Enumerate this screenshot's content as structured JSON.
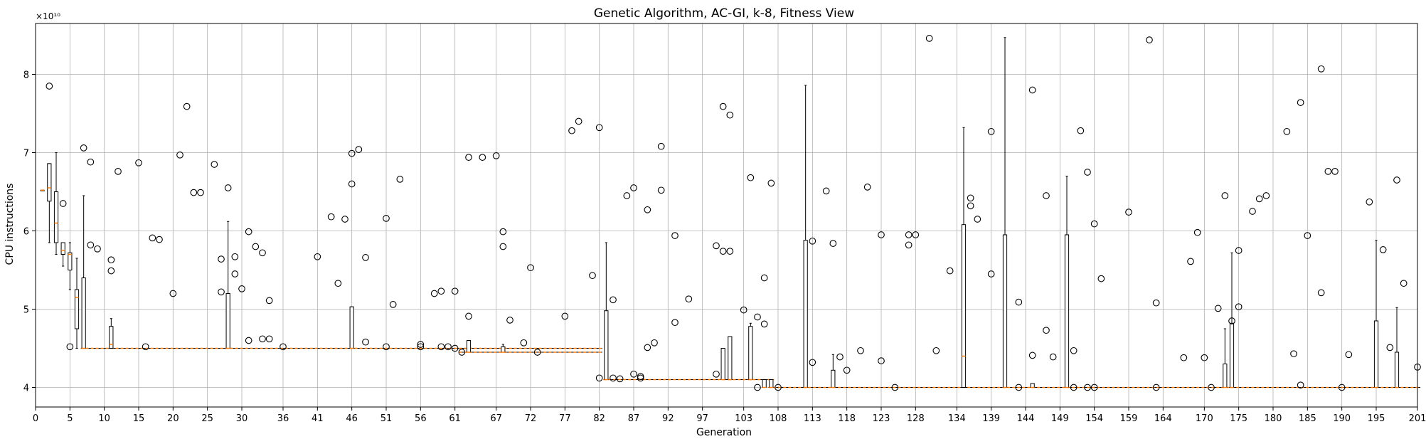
{
  "chart_data": {
    "type": "box",
    "title": "Genetic Algorithm, AC-GI, k-8, Fitness View",
    "xlabel": "Generation",
    "ylabel": "CPU instructions",
    "y_offset_label": "×10¹⁰",
    "y_scale_factor": 10000000000,
    "xlim": [
      0,
      201
    ],
    "ylim": [
      3.75,
      8.65
    ],
    "x_ticks": [
      0,
      5,
      10,
      15,
      20,
      25,
      30,
      36,
      41,
      46,
      51,
      56,
      61,
      67,
      72,
      77,
      82,
      87,
      92,
      97,
      103,
      108,
      113,
      118,
      123,
      128,
      134,
      139,
      144,
      149,
      154,
      159,
      164,
      170,
      175,
      180,
      185,
      190,
      195,
      201
    ],
    "y_ticks": [
      4,
      5,
      6,
      7,
      8
    ],
    "grid": true,
    "box_color": "#000000",
    "median_color": "#ff7f0e",
    "boxes": [
      {
        "x": 1,
        "q1": 6.52,
        "med": 6.52,
        "q3": 6.52,
        "lo": 6.52,
        "hi": 6.52
      },
      {
        "x": 2,
        "q1": 6.38,
        "med": 6.55,
        "q3": 6.86,
        "lo": 5.85,
        "hi": 6.86
      },
      {
        "x": 3,
        "q1": 5.85,
        "med": 6.1,
        "q3": 6.5,
        "lo": 5.7,
        "hi": 7.0
      },
      {
        "x": 4,
        "q1": 5.7,
        "med": 5.75,
        "q3": 5.85,
        "lo": 5.55,
        "hi": 5.85
      },
      {
        "x": 5,
        "q1": 5.5,
        "med": 5.7,
        "q3": 5.72,
        "lo": 5.25,
        "hi": 5.85
      },
      {
        "x": 6,
        "q1": 4.75,
        "med": 5.15,
        "q3": 5.25,
        "lo": 4.5,
        "hi": 5.65
      },
      {
        "x": 7,
        "q1": 4.5,
        "med": 4.5,
        "q3": 5.4,
        "lo": 4.5,
        "hi": 6.45
      },
      {
        "x": 11,
        "q1": 4.5,
        "med": 4.55,
        "q3": 4.78,
        "lo": 4.5,
        "hi": 4.88
      },
      {
        "x": 28,
        "q1": 4.5,
        "med": 4.5,
        "q3": 5.2,
        "lo": 4.5,
        "hi": 6.12
      },
      {
        "x": 46,
        "q1": 4.5,
        "med": 4.5,
        "q3": 5.03,
        "lo": 4.5,
        "hi": 5.03
      },
      {
        "x": 63,
        "q1": 4.45,
        "med": 4.45,
        "q3": 4.6,
        "lo": 4.45,
        "hi": 4.6
      },
      {
        "x": 68,
        "q1": 4.45,
        "med": 4.45,
        "q3": 4.52,
        "lo": 4.45,
        "hi": 4.55
      },
      {
        "x": 83,
        "q1": 4.1,
        "med": 4.1,
        "q3": 4.98,
        "lo": 4.1,
        "hi": 5.85
      },
      {
        "x": 100,
        "q1": 4.1,
        "med": 4.1,
        "q3": 4.5,
        "lo": 4.1,
        "hi": 4.5
      },
      {
        "x": 101,
        "q1": 4.1,
        "med": 4.1,
        "q3": 4.65,
        "lo": 4.1,
        "hi": 4.65
      },
      {
        "x": 104,
        "q1": 4.1,
        "med": 4.1,
        "q3": 4.78,
        "lo": 4.1,
        "hi": 4.82
      },
      {
        "x": 106,
        "q1": 4.0,
        "med": 4.0,
        "q3": 4.1,
        "lo": 4.0,
        "hi": 4.1
      },
      {
        "x": 107,
        "q1": 4.0,
        "med": 4.0,
        "q3": 4.1,
        "lo": 4.0,
        "hi": 4.1
      },
      {
        "x": 112,
        "q1": 4.0,
        "med": 4.0,
        "q3": 5.88,
        "lo": 4.0,
        "hi": 7.86
      },
      {
        "x": 116,
        "q1": 4.0,
        "med": 4.0,
        "q3": 4.22,
        "lo": 4.0,
        "hi": 4.42
      },
      {
        "x": 135,
        "q1": 4.0,
        "med": 4.4,
        "q3": 6.08,
        "lo": 4.0,
        "hi": 7.32
      },
      {
        "x": 141,
        "q1": 4.0,
        "med": 4.0,
        "q3": 5.95,
        "lo": 4.0,
        "hi": 8.47
      },
      {
        "x": 145,
        "q1": 4.0,
        "med": 4.0,
        "q3": 4.05,
        "lo": 4.0,
        "hi": 4.05
      },
      {
        "x": 150,
        "q1": 4.0,
        "med": 4.0,
        "q3": 5.95,
        "lo": 4.0,
        "hi": 6.7
      },
      {
        "x": 173,
        "q1": 4.0,
        "med": 4.0,
        "q3": 4.3,
        "lo": 4.0,
        "hi": 4.75
      },
      {
        "x": 174,
        "q1": 4.0,
        "med": 4.0,
        "q3": 4.82,
        "lo": 4.0,
        "hi": 5.72
      },
      {
        "x": 195,
        "q1": 4.0,
        "med": 4.0,
        "q3": 4.85,
        "lo": 4.0,
        "hi": 5.88
      },
      {
        "x": 198,
        "q1": 4.0,
        "med": 4.0,
        "q3": 4.45,
        "lo": 4.0,
        "hi": 5.02
      }
    ],
    "flat_segments": [
      {
        "x0": 7,
        "x1": 82,
        "y": 4.5
      },
      {
        "x0": 62,
        "x1": 82,
        "y": 4.45
      },
      {
        "x0": 83,
        "x1": 107,
        "y": 4.1
      },
      {
        "x0": 107,
        "x1": 201,
        "y": 4.0
      }
    ],
    "outliers": [
      [
        2,
        7.85
      ],
      [
        4,
        6.35
      ],
      [
        5,
        4.52
      ],
      [
        7,
        7.06
      ],
      [
        8,
        6.88
      ],
      [
        8,
        5.82
      ],
      [
        9,
        5.77
      ],
      [
        11,
        5.63
      ],
      [
        11,
        5.49
      ],
      [
        12,
        6.76
      ],
      [
        15,
        6.87
      ],
      [
        16,
        4.52
      ],
      [
        17,
        5.91
      ],
      [
        18,
        5.89
      ],
      [
        20,
        5.2
      ],
      [
        21,
        6.97
      ],
      [
        22,
        7.59
      ],
      [
        23,
        6.49
      ],
      [
        24,
        6.49
      ],
      [
        26,
        6.85
      ],
      [
        27,
        5.64
      ],
      [
        27,
        5.22
      ],
      [
        28,
        6.55
      ],
      [
        29,
        5.67
      ],
      [
        29,
        5.45
      ],
      [
        30,
        5.26
      ],
      [
        31,
        5.99
      ],
      [
        31,
        4.6
      ],
      [
        32,
        5.8
      ],
      [
        33,
        5.72
      ],
      [
        33,
        4.62
      ],
      [
        34,
        4.62
      ],
      [
        34,
        5.11
      ],
      [
        36,
        4.52
      ],
      [
        41,
        5.67
      ],
      [
        43,
        6.18
      ],
      [
        44,
        5.33
      ],
      [
        45,
        6.15
      ],
      [
        46,
        6.99
      ],
      [
        46,
        6.6
      ],
      [
        47,
        7.04
      ],
      [
        48,
        5.66
      ],
      [
        48,
        4.58
      ],
      [
        51,
        6.16
      ],
      [
        51,
        4.52
      ],
      [
        52,
        5.06
      ],
      [
        53,
        6.66
      ],
      [
        56,
        4.55
      ],
      [
        56,
        4.52
      ],
      [
        58,
        5.2
      ],
      [
        59,
        5.23
      ],
      [
        59,
        4.52
      ],
      [
        60,
        4.52
      ],
      [
        61,
        5.23
      ],
      [
        61,
        4.5
      ],
      [
        62,
        4.45
      ],
      [
        63,
        4.91
      ],
      [
        63,
        6.94
      ],
      [
        65,
        6.94
      ],
      [
        67,
        6.96
      ],
      [
        68,
        5.99
      ],
      [
        68,
        5.8
      ],
      [
        69,
        4.86
      ],
      [
        71,
        4.57
      ],
      [
        72,
        5.53
      ],
      [
        73,
        4.45
      ],
      [
        77,
        4.91
      ],
      [
        78,
        7.28
      ],
      [
        79,
        7.4
      ],
      [
        81,
        5.43
      ],
      [
        82,
        7.32
      ],
      [
        82,
        4.12
      ],
      [
        84,
        5.12
      ],
      [
        84,
        4.12
      ],
      [
        85,
        4.11
      ],
      [
        86,
        6.45
      ],
      [
        87,
        6.55
      ],
      [
        87,
        4.17
      ],
      [
        88,
        4.14
      ],
      [
        88,
        4.12
      ],
      [
        89,
        6.27
      ],
      [
        89,
        4.51
      ],
      [
        90,
        4.57
      ],
      [
        91,
        7.08
      ],
      [
        91,
        6.52
      ],
      [
        93,
        5.94
      ],
      [
        93,
        4.83
      ],
      [
        95,
        5.13
      ],
      [
        99,
        5.81
      ],
      [
        99,
        4.17
      ],
      [
        100,
        7.59
      ],
      [
        100,
        5.74
      ],
      [
        101,
        7.48
      ],
      [
        101,
        5.74
      ],
      [
        103,
        4.99
      ],
      [
        104,
        6.68
      ],
      [
        105,
        4.9
      ],
      [
        105,
        4.0
      ],
      [
        106,
        5.4
      ],
      [
        106,
        4.81
      ],
      [
        107,
        6.61
      ],
      [
        108,
        4.0
      ],
      [
        113,
        5.87
      ],
      [
        113,
        4.32
      ],
      [
        115,
        6.51
      ],
      [
        116,
        5.84
      ],
      [
        117,
        4.39
      ],
      [
        118,
        4.22
      ],
      [
        120,
        4.47
      ],
      [
        121,
        6.56
      ],
      [
        123,
        5.95
      ],
      [
        123,
        4.34
      ],
      [
        125,
        4.0
      ],
      [
        127,
        5.95
      ],
      [
        127,
        5.82
      ],
      [
        128,
        5.95
      ],
      [
        130,
        8.46
      ],
      [
        131,
        4.47
      ],
      [
        133,
        5.49
      ],
      [
        136,
        6.42
      ],
      [
        136,
        6.32
      ],
      [
        137,
        6.15
      ],
      [
        139,
        7.27
      ],
      [
        139,
        5.45
      ],
      [
        143,
        5.09
      ],
      [
        143,
        4.0
      ],
      [
        145,
        7.8
      ],
      [
        145,
        4.41
      ],
      [
        147,
        6.45
      ],
      [
        147,
        4.73
      ],
      [
        148,
        4.39
      ],
      [
        151,
        4.47
      ],
      [
        151,
        4.0
      ],
      [
        152,
        7.28
      ],
      [
        153,
        6.75
      ],
      [
        153,
        4.0
      ],
      [
        154,
        6.09
      ],
      [
        154,
        4.0
      ],
      [
        155,
        5.39
      ],
      [
        159,
        6.24
      ],
      [
        162,
        8.44
      ],
      [
        163,
        5.08
      ],
      [
        163,
        4.0
      ],
      [
        167,
        4.38
      ],
      [
        168,
        5.61
      ],
      [
        169,
        5.98
      ],
      [
        170,
        4.38
      ],
      [
        171,
        4.0
      ],
      [
        172,
        5.01
      ],
      [
        173,
        6.45
      ],
      [
        174,
        4.85
      ],
      [
        175,
        5.75
      ],
      [
        175,
        5.03
      ],
      [
        177,
        6.25
      ],
      [
        178,
        6.41
      ],
      [
        179,
        6.45
      ],
      [
        182,
        7.27
      ],
      [
        183,
        4.43
      ],
      [
        184,
        7.64
      ],
      [
        184,
        4.03
      ],
      [
        185,
        5.94
      ],
      [
        187,
        8.07
      ],
      [
        187,
        5.21
      ],
      [
        188,
        6.76
      ],
      [
        189,
        6.76
      ],
      [
        190,
        4.0
      ],
      [
        191,
        4.42
      ],
      [
        194,
        6.37
      ],
      [
        196,
        5.76
      ],
      [
        197,
        4.51
      ],
      [
        198,
        6.65
      ],
      [
        199,
        5.33
      ],
      [
        201,
        4.26
      ]
    ]
  }
}
